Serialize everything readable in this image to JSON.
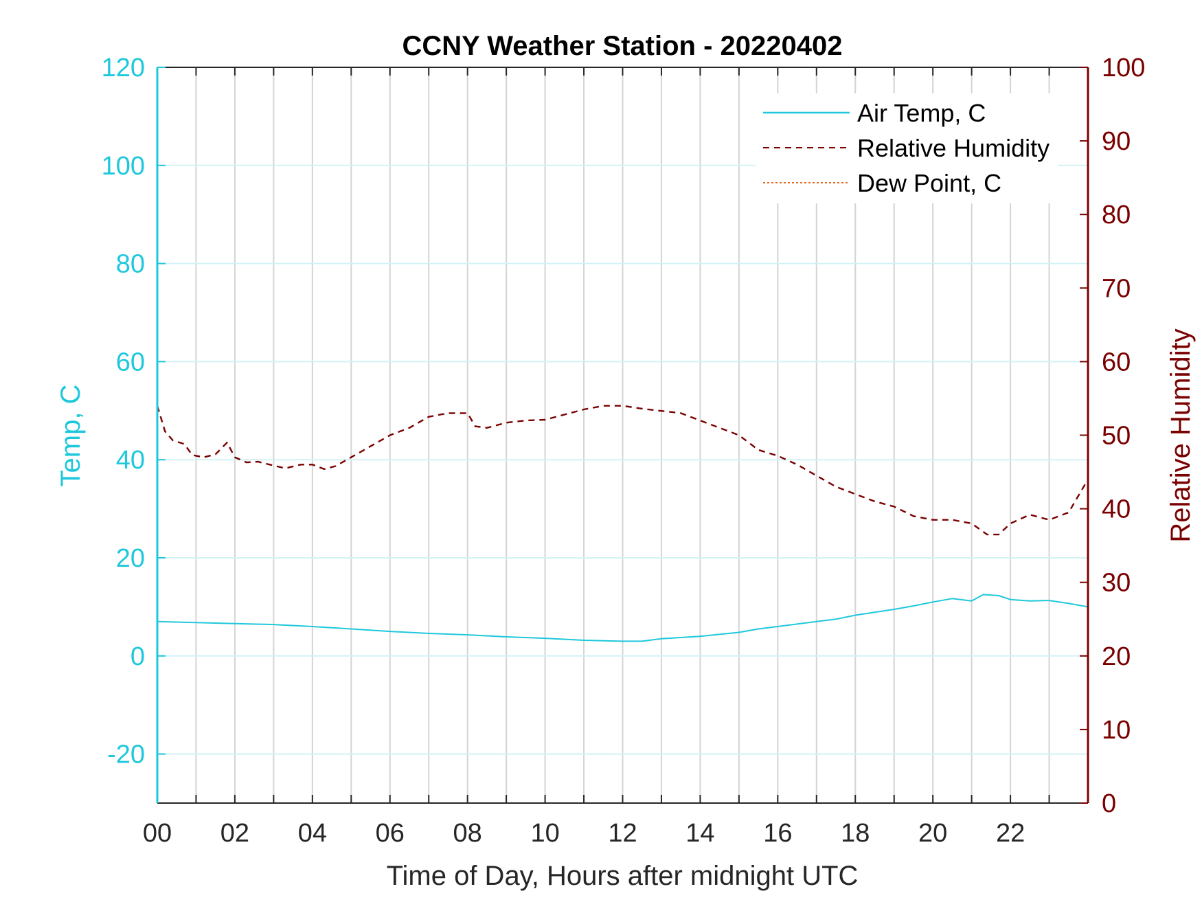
{
  "chart_data": {
    "type": "line",
    "title": "CCNY Weather Station - 20220402",
    "xlabel": "Time of Day, Hours after midnight UTC",
    "ylabel_left": "Temp, C",
    "ylabel_right": "Relative Humidity",
    "xlim": [
      0,
      24
    ],
    "ylim_left": [
      -30,
      120
    ],
    "ylim_right": [
      0,
      100
    ],
    "x_ticks": [
      0,
      2,
      4,
      6,
      8,
      10,
      12,
      14,
      16,
      18,
      20,
      22
    ],
    "x_tick_labels": [
      "00",
      "02",
      "04",
      "06",
      "08",
      "10",
      "12",
      "14",
      "16",
      "18",
      "20",
      "22"
    ],
    "y_left_ticks": [
      -20,
      0,
      20,
      40,
      60,
      80,
      100,
      120
    ],
    "y_left_tick_labels": [
      "-20",
      "0",
      "20",
      "40",
      "60",
      "80",
      "100",
      "120"
    ],
    "y_right_ticks": [
      0,
      10,
      20,
      30,
      40,
      50,
      60,
      70,
      80,
      90,
      100
    ],
    "y_right_tick_labels": [
      "0",
      "10",
      "20",
      "30",
      "40",
      "50",
      "60",
      "70",
      "80",
      "90",
      "100"
    ],
    "grid": true,
    "legend_position": "top-right",
    "series": [
      {
        "name": "Air Temp, C",
        "axis": "left",
        "color": "#1ec8dc",
        "style": "solid",
        "x": [
          0,
          0.5,
          1,
          2,
          3,
          4,
          5,
          6,
          7,
          8,
          9,
          10,
          11,
          12,
          12.5,
          13,
          14,
          15,
          15.5,
          16,
          17,
          17.5,
          18,
          19,
          19.5,
          20,
          20.5,
          21,
          21.3,
          21.7,
          22,
          22.5,
          23,
          23.5,
          24
        ],
        "y": [
          7.0,
          6.9,
          6.8,
          6.6,
          6.4,
          6.0,
          5.5,
          5.0,
          4.6,
          4.3,
          3.9,
          3.6,
          3.2,
          3.0,
          3.0,
          3.5,
          4.0,
          4.8,
          5.5,
          6.0,
          7.0,
          7.5,
          8.3,
          9.5,
          10.2,
          11.0,
          11.7,
          11.2,
          12.5,
          12.3,
          11.5,
          11.2,
          11.3,
          10.7,
          10.0
        ]
      },
      {
        "name": "Relative Humidity",
        "axis": "right",
        "color": "#7a0000",
        "style": "dashed",
        "x": [
          0,
          0.2,
          0.4,
          0.7,
          0.9,
          1.2,
          1.5,
          1.8,
          2.0,
          2.3,
          2.6,
          2.9,
          3.3,
          3.7,
          4.0,
          4.3,
          4.6,
          5.0,
          5.5,
          6.0,
          6.5,
          7.0,
          7.5,
          8.0,
          8.2,
          8.5,
          9.0,
          9.5,
          10.0,
          10.5,
          11.0,
          11.5,
          12.0,
          12.5,
          13.0,
          13.5,
          14.0,
          14.5,
          15.0,
          15.5,
          16.0,
          16.5,
          17.0,
          17.5,
          18.0,
          18.5,
          19.0,
          19.5,
          20.0,
          20.5,
          21.0,
          21.4,
          21.7,
          22.0,
          22.5,
          23.0,
          23.5,
          24.0
        ],
        "y": [
          54.0,
          50.5,
          49.3,
          48.8,
          47.3,
          47.0,
          47.4,
          49.0,
          47.0,
          46.3,
          46.4,
          46.0,
          45.5,
          46.0,
          46.0,
          45.4,
          45.8,
          47.0,
          48.5,
          50.0,
          51.0,
          52.5,
          53.0,
          53.0,
          51.2,
          51.0,
          51.7,
          52.0,
          52.1,
          52.8,
          53.5,
          54.0,
          54.0,
          53.6,
          53.3,
          53.0,
          52.0,
          51.0,
          50.0,
          48.0,
          47.2,
          46.0,
          44.5,
          43.0,
          42.0,
          41.0,
          40.3,
          39.0,
          38.5,
          38.5,
          38.0,
          36.5,
          36.5,
          38.0,
          39.2,
          38.5,
          39.5,
          44.0
        ]
      },
      {
        "name": "Dew Point, C",
        "axis": "left",
        "color": "#e8661a",
        "style": "dotted",
        "x": [],
        "y": []
      }
    ]
  }
}
